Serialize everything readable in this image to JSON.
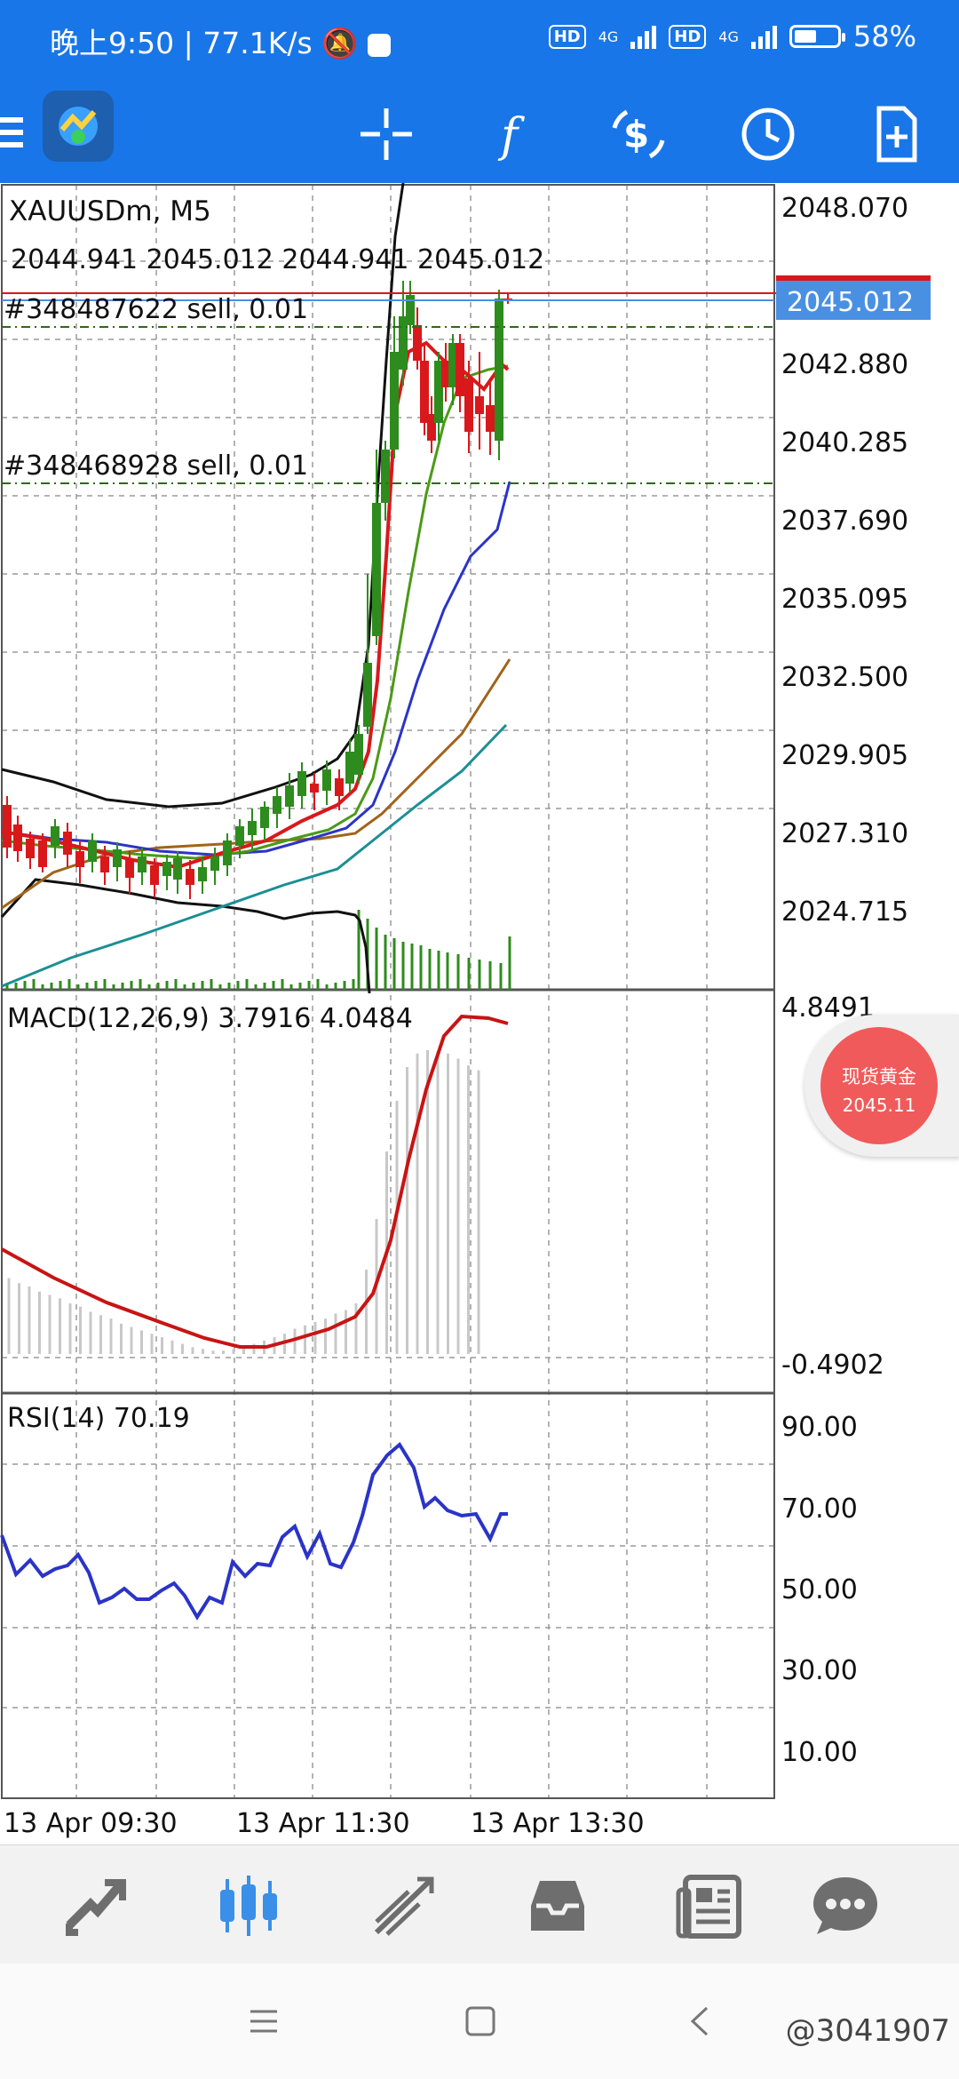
{
  "status_bar": {
    "time": "晚上9:50",
    "speed": "77.1K/s",
    "hd1": "HD",
    "net1": "4G",
    "hd2": "HD",
    "net2": "4G",
    "battery": "58%",
    "battery_level": 0.58
  },
  "toolbar": {
    "icons": [
      "menu-icon",
      "metatrader-logo",
      "crosshair-icon",
      "indicators-icon",
      "symbol-change-icon",
      "timeframe-clock-icon",
      "new-order-icon"
    ]
  },
  "chart": {
    "symbol": "XAUUSDm, M5",
    "ohlc": "2044.941 2045.012 2044.941 2045.012",
    "current_price": "2045.012",
    "order_1": "#348487622 sell, 0.01",
    "order_2": "#348468928 sell, 0.01",
    "price_axis": [
      "2048.070",
      "2042.880",
      "2040.285",
      "2037.690",
      "2035.095",
      "2032.500",
      "2029.905",
      "2027.310",
      "2024.715"
    ],
    "macd_label": "MACD(12,26,9) 3.7916 4.0484",
    "macd_axis": [
      "4.8491",
      "-0.4902"
    ],
    "rsi_label": "RSI(14) 70.19",
    "rsi_axis": [
      "90.00",
      "70.00",
      "50.00",
      "30.00",
      "10.00"
    ],
    "time_axis": [
      "13 Apr 09:30",
      "13 Apr 11:30",
      "13 Apr 13:30"
    ],
    "colors": {
      "bull": "#2e8b1e",
      "bear": "#d9181c",
      "bands": "#111111",
      "ma_blue": "#2b34c7",
      "ma_brown": "#a0641a",
      "ma_teal": "#1a8f94",
      "price_tag": "#4a90e2",
      "rsi": "#2b34c7",
      "macd_signal": "#c81414"
    }
  },
  "badge": {
    "title": "现货黄金",
    "price": "2045.11"
  },
  "bottom_nav": {
    "items": [
      "trade-icon",
      "chart-icon",
      "history-icon",
      "inbox-icon",
      "news-icon",
      "chat-icon"
    ]
  },
  "watermark": "@3041907"
}
